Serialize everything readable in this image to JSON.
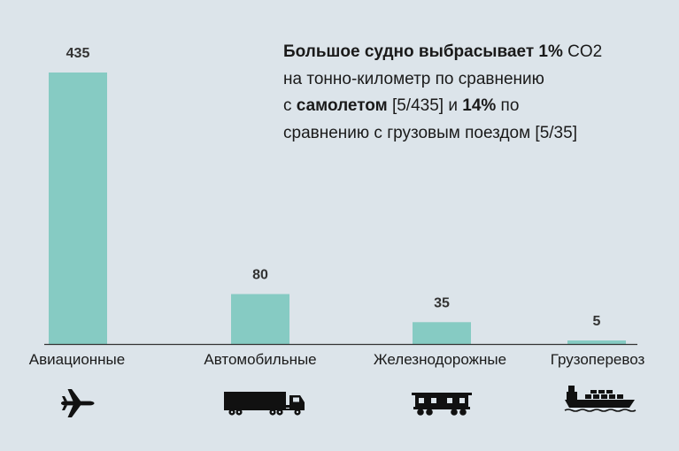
{
  "colors": {
    "background": "#dce4ea",
    "bar": "#86cbc3",
    "axis": "#333333",
    "text": "#1a1a1a",
    "icon": "#111111"
  },
  "annotation": {
    "line1_bold": "Большое судно выбрасывает 1%",
    "line1_rest": " CO2",
    "line2": "на тонно-километр по сравнению",
    "line3_pre": "с ",
    "line3_bold1": "самолетом",
    "line3_mid": " [5/435] и ",
    "line3_bold2": "14%",
    "line3_post": " по",
    "line4": "сравнению с грузовым поездом [5/35]"
  },
  "icons": [
    "airplane-icon",
    "truck-icon",
    "freight-train-icon",
    "cargo-ship-icon"
  ],
  "chart_data": {
    "type": "bar",
    "categories": [
      "Авиационные",
      "Автомобильные",
      "Железнодорожные",
      "Грузоперевоз"
    ],
    "values": [
      435,
      80,
      35,
      5
    ],
    "data_labels": [
      "435",
      "80",
      "35",
      "5"
    ],
    "title": "",
    "xlabel": "",
    "ylabel": "",
    "ylim": [
      0,
      435
    ],
    "grid": false,
    "legend": "none"
  }
}
